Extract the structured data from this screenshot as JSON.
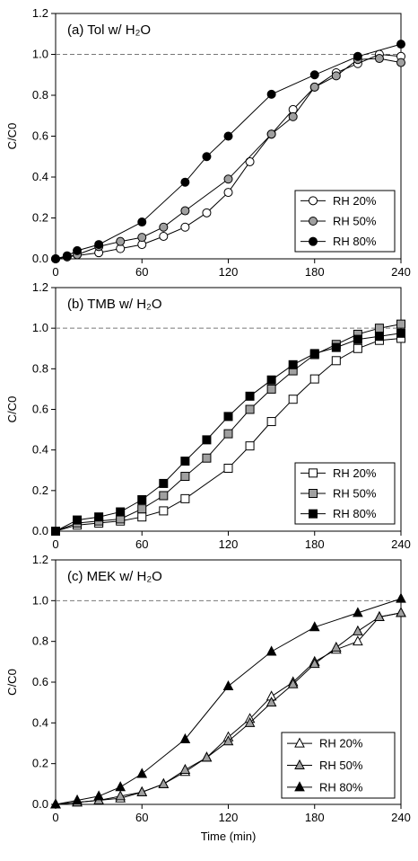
{
  "chart_data": [
    {
      "type": "line",
      "title": "(a) Tol w/ H₂O",
      "xlabel": "",
      "ylabel": "C/C0",
      "xlim": [
        0,
        240
      ],
      "ylim": [
        0,
        1.2
      ],
      "xticks": [
        "0",
        "60",
        "120",
        "180",
        "240"
      ],
      "yticks": [
        "0.0",
        "0.2",
        "0.4",
        "0.6",
        "0.8",
        "1.0",
        "1.2"
      ],
      "reference_line": 1.0,
      "marker": "circle",
      "legend_position": "bottom-right",
      "series": [
        {
          "name": "RH 20%",
          "fill": "#ffffff",
          "x": [
            0,
            8,
            30,
            45,
            60,
            75,
            90,
            105,
            120,
            135,
            150,
            165,
            180,
            195,
            210,
            225,
            240
          ],
          "y": [
            0,
            0.01,
            0.03,
            0.05,
            0.07,
            0.11,
            0.155,
            0.225,
            0.325,
            0.475,
            0.61,
            0.73,
            0.84,
            0.91,
            0.955,
            1.0,
            0.99
          ]
        },
        {
          "name": "RH 50%",
          "fill": "#a0a0a0",
          "x": [
            0,
            8,
            15,
            30,
            45,
            60,
            75,
            90,
            120,
            150,
            165,
            180,
            195,
            210,
            225,
            240
          ],
          "y": [
            0,
            0.01,
            0.02,
            0.06,
            0.085,
            0.105,
            0.155,
            0.235,
            0.39,
            0.61,
            0.695,
            0.84,
            0.895,
            0.975,
            0.98,
            0.96
          ]
        },
        {
          "name": "RH 80%",
          "fill": "#000000",
          "x": [
            0,
            8,
            15,
            30,
            60,
            90,
            105,
            120,
            150,
            180,
            210,
            240
          ],
          "y": [
            0,
            0.015,
            0.04,
            0.07,
            0.18,
            0.375,
            0.5,
            0.6,
            0.805,
            0.9,
            0.99,
            1.05
          ]
        }
      ]
    },
    {
      "type": "line",
      "title": "(b) TMB w/ H₂O",
      "xlabel": "",
      "ylabel": "C/C0",
      "xlim": [
        0,
        240
      ],
      "ylim": [
        0,
        1.2
      ],
      "xticks": [
        "0",
        "60",
        "120",
        "180",
        "240"
      ],
      "yticks": [
        "0.0",
        "0.2",
        "0.4",
        "0.6",
        "0.8",
        "1.0",
        "1.2"
      ],
      "reference_line": 1.0,
      "marker": "square",
      "legend_position": "bottom-right",
      "series": [
        {
          "name": "RH 20%",
          "fill": "#ffffff",
          "x": [
            0,
            15,
            30,
            45,
            60,
            75,
            90,
            120,
            135,
            150,
            165,
            180,
            195,
            210,
            225,
            240
          ],
          "y": [
            0,
            0.03,
            0.04,
            0.05,
            0.07,
            0.1,
            0.16,
            0.31,
            0.42,
            0.54,
            0.65,
            0.75,
            0.84,
            0.9,
            0.94,
            0.95
          ]
        },
        {
          "name": "RH 50%",
          "fill": "#a0a0a0",
          "x": [
            0,
            15,
            30,
            45,
            60,
            75,
            90,
            105,
            120,
            135,
            150,
            165,
            180,
            195,
            210,
            225,
            240
          ],
          "y": [
            0,
            0.04,
            0.05,
            0.06,
            0.11,
            0.175,
            0.27,
            0.36,
            0.48,
            0.6,
            0.7,
            0.79,
            0.87,
            0.92,
            0.97,
            1.0,
            1.02
          ]
        },
        {
          "name": "RH 80%",
          "fill": "#000000",
          "x": [
            0,
            15,
            30,
            45,
            60,
            75,
            90,
            105,
            120,
            135,
            150,
            165,
            180,
            195,
            210,
            225,
            240
          ],
          "y": [
            0,
            0.055,
            0.07,
            0.095,
            0.155,
            0.235,
            0.345,
            0.45,
            0.565,
            0.665,
            0.745,
            0.82,
            0.875,
            0.905,
            0.945,
            0.96,
            0.975
          ]
        }
      ]
    },
    {
      "type": "line",
      "title": "(c) MEK w/ H₂O",
      "xlabel": "Time (min)",
      "ylabel": "C/C0",
      "xlim": [
        0,
        240
      ],
      "ylim": [
        0,
        1.2
      ],
      "xticks": [
        "0",
        "60",
        "120",
        "180",
        "240"
      ],
      "yticks": [
        "0.0",
        "0.2",
        "0.4",
        "0.6",
        "0.8",
        "1.0",
        "1.2"
      ],
      "reference_line": 1.0,
      "marker": "triangle",
      "legend_position": "bottom-right",
      "series": [
        {
          "name": "RH 20%",
          "fill": "#ffffff",
          "x": [
            0,
            15,
            30,
            45,
            60,
            75,
            90,
            105,
            120,
            135,
            150,
            165,
            180,
            195,
            210,
            225,
            240
          ],
          "y": [
            0,
            0.01,
            0.02,
            0.03,
            0.06,
            0.1,
            0.16,
            0.23,
            0.33,
            0.42,
            0.53,
            0.6,
            0.7,
            0.76,
            0.8,
            0.92,
            0.94
          ]
        },
        {
          "name": "RH 50%",
          "fill": "#a0a0a0",
          "x": [
            0,
            15,
            30,
            45,
            60,
            75,
            90,
            105,
            120,
            135,
            150,
            165,
            180,
            195,
            210,
            225,
            240
          ],
          "y": [
            0,
            0.01,
            0.02,
            0.04,
            0.06,
            0.1,
            0.17,
            0.23,
            0.31,
            0.4,
            0.5,
            0.59,
            0.69,
            0.77,
            0.85,
            0.92,
            0.94
          ]
        },
        {
          "name": "RH 80%",
          "fill": "#000000",
          "x": [
            0,
            15,
            30,
            45,
            60,
            90,
            120,
            150,
            180,
            210,
            240
          ],
          "y": [
            0,
            0.02,
            0.04,
            0.085,
            0.15,
            0.32,
            0.58,
            0.75,
            0.87,
            0.94,
            1.01
          ]
        }
      ]
    }
  ]
}
